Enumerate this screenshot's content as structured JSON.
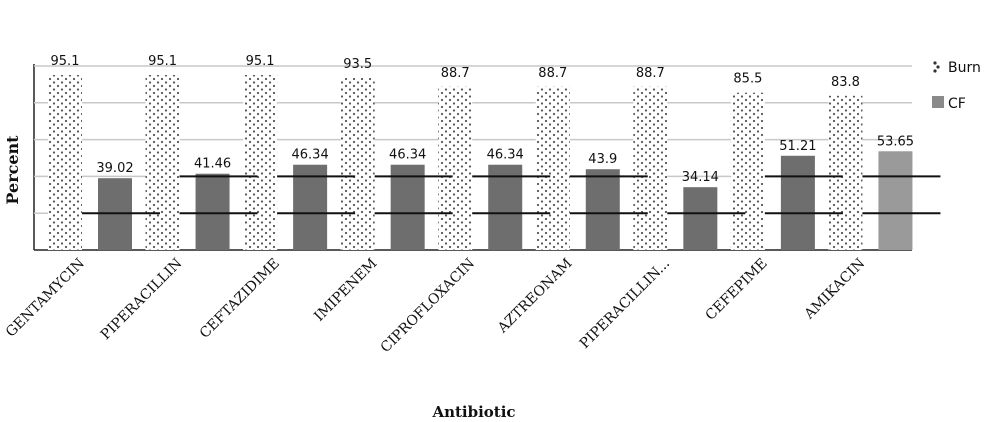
{
  "chart_data": {
    "type": "bar",
    "title": "",
    "xlabel": "Antibiotic",
    "ylabel": "Percent",
    "categories": [
      "GENTAMYCIN",
      "PIPERACILLIN",
      "CEFTAZIDIME",
      "IMIPENEM",
      "CIPROFLOXACIN",
      "AZTREONAM",
      "PIPERACILLIN...",
      "CEFEPIME",
      "AMIKACIN"
    ],
    "series": [
      {
        "name": "Burn",
        "values": [
          95.1,
          95.1,
          95.1,
          93.5,
          88.7,
          88.7,
          88.7,
          85.5,
          83.8
        ],
        "labels": [
          "95.1",
          "95.1",
          "95.1",
          "93.5",
          "88.7",
          "88.7",
          "88.7",
          "85.5",
          "83.8"
        ],
        "pattern": "dotted",
        "color": "#ffffff"
      },
      {
        "name": "CF",
        "values": [
          39.02,
          41.46,
          46.34,
          46.34,
          46.34,
          43.9,
          34.14,
          51.21,
          53.65
        ],
        "labels": [
          "39.02",
          "41.46",
          "46.34",
          "46.34",
          "46.34",
          "43.9",
          "34.14",
          "51.21",
          "53.65"
        ],
        "color": "#6e6e6e",
        "last_color": "#9a9a9a"
      }
    ],
    "ylim": [
      0,
      100
    ],
    "y_gridlines": [
      20,
      40,
      60,
      80,
      100
    ],
    "grid": true,
    "legend": "top-right"
  }
}
